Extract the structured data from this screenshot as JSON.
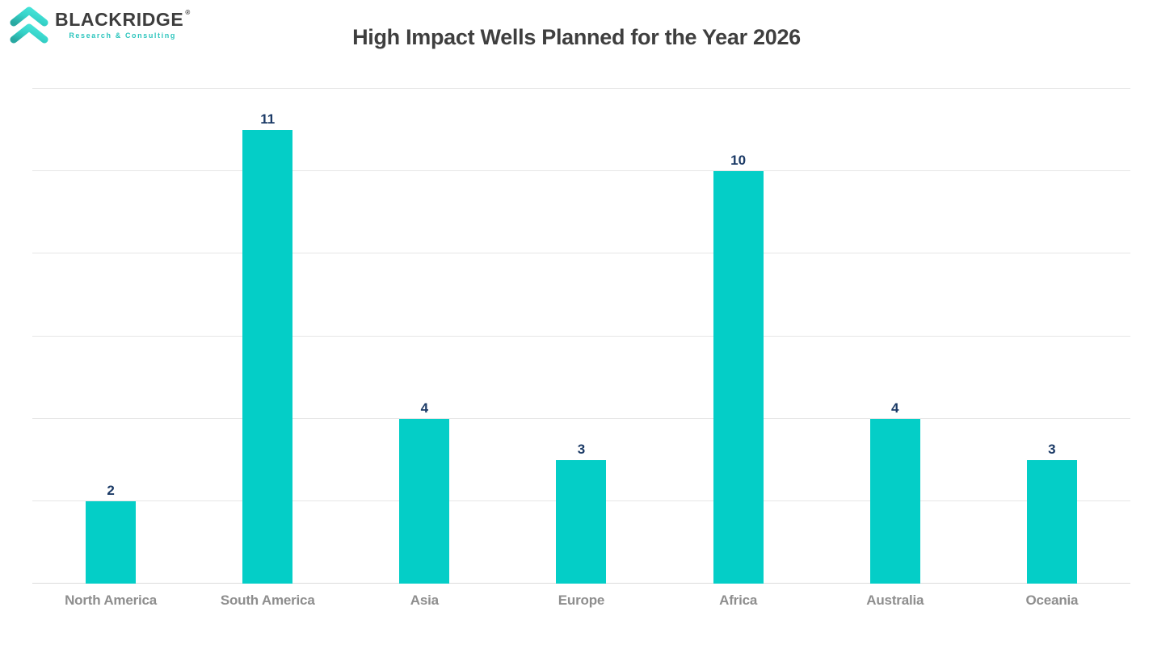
{
  "header": {
    "logo": {
      "brand": "BLACKRIDGE",
      "registered_mark": "®",
      "tagline": "Research & Consulting",
      "icon": "double-chevron-up-icon",
      "brand_text_color": "#3d3d3d",
      "teal_color": "#2cc5bd"
    },
    "title": "High Impact Wells Planned for the Year 2026"
  },
  "chart_data": {
    "type": "bar",
    "title": "High Impact Wells Planned for the Year 2026",
    "categories": [
      "North America",
      "South America",
      "Asia",
      "Europe",
      "Africa",
      "Australia",
      "Oceania"
    ],
    "values": [
      2,
      11,
      4,
      3,
      10,
      4,
      3
    ],
    "xlabel": "",
    "ylabel": "",
    "ylim": [
      0,
      12
    ],
    "gridline_step": 2,
    "grid": true,
    "y_tick_labels_visible": false,
    "legend_position": "none",
    "data_labels_visible": true,
    "bar_color": "#04cec7",
    "value_label_color": "#1b3a66",
    "category_label_color": "#8e8e8e",
    "gridline_color": "#e6e6e6",
    "background_color": "#ffffff"
  }
}
